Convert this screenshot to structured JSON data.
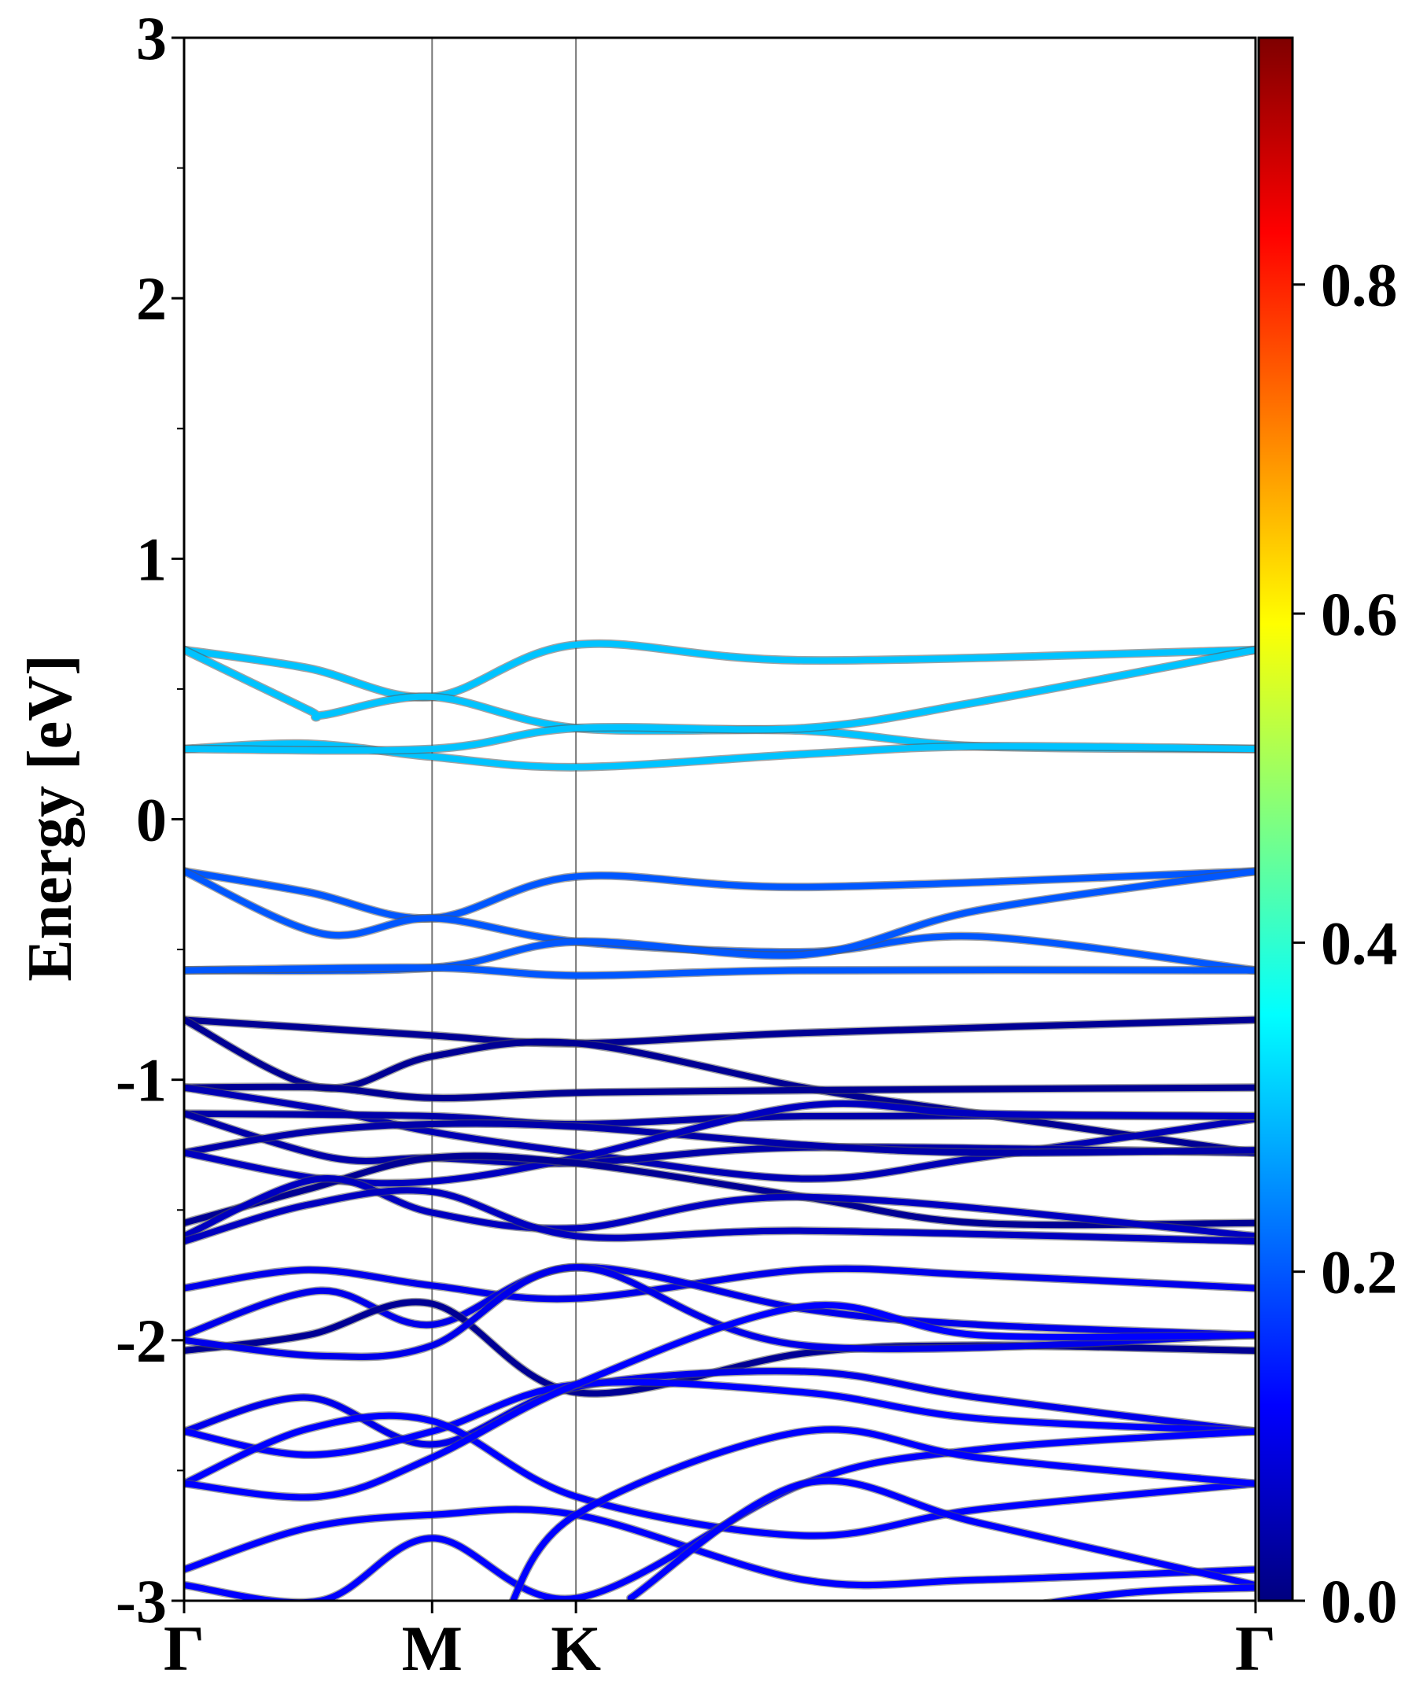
{
  "chart_data": {
    "type": "line",
    "title": "",
    "xlabel": "",
    "ylabel": "Energy [eV]",
    "ylim": [
      -3,
      3
    ],
    "y_ticks": [
      "-3",
      "-2",
      "-1",
      "0",
      "1",
      "2",
      "3"
    ],
    "k_path": [
      "Γ",
      "M",
      "K",
      "Γ"
    ],
    "k_positions": [
      0,
      1,
      1.58,
      4.32
    ],
    "colorbar": {
      "range": [
        0.0,
        0.95
      ],
      "ticks": [
        "0.0",
        "0.2",
        "0.4",
        "0.6",
        "0.8"
      ],
      "colormap": "jet"
    },
    "grid": false,
    "series": [
      {
        "weight": 0.3,
        "values": [
          [
            0,
            0.65
          ],
          [
            0.5,
            0.58
          ],
          [
            1,
            0.47
          ],
          [
            1.58,
            0.67
          ],
          [
            2.5,
            0.61
          ],
          [
            4.32,
            0.65
          ]
        ]
      },
      {
        "weight": 0.3,
        "values": [
          [
            0,
            0.65
          ],
          [
            0.5,
            0.42
          ],
          [
            0.56,
            0.4
          ],
          [
            1,
            0.47
          ],
          [
            1.58,
            0.35
          ],
          [
            2.5,
            0.34
          ],
          [
            3.2,
            0.28
          ],
          [
            4.32,
            0.27
          ]
        ]
      },
      {
        "weight": 0.3,
        "values": [
          [
            0,
            0.27
          ],
          [
            0.5,
            0.29
          ],
          [
            1,
            0.24
          ],
          [
            1.58,
            0.2
          ],
          [
            2.5,
            0.25
          ],
          [
            3.2,
            0.28
          ],
          [
            4.32,
            0.27
          ]
        ]
      },
      {
        "weight": 0.3,
        "values": [
          [
            0,
            0.27
          ],
          [
            1,
            0.27
          ],
          [
            1.58,
            0.35
          ],
          [
            2.5,
            0.35
          ],
          [
            3.2,
            0.45
          ],
          [
            4.32,
            0.65
          ]
        ]
      },
      {
        "weight": 0.2,
        "values": [
          [
            0,
            -0.2
          ],
          [
            0.5,
            -0.28
          ],
          [
            1,
            -0.38
          ],
          [
            1.58,
            -0.22
          ],
          [
            2.5,
            -0.26
          ],
          [
            4.32,
            -0.2
          ]
        ]
      },
      {
        "weight": 0.2,
        "values": [
          [
            0,
            -0.2
          ],
          [
            0.56,
            -0.44
          ],
          [
            1,
            -0.38
          ],
          [
            1.58,
            -0.47
          ],
          [
            2.5,
            -0.51
          ],
          [
            3.2,
            -0.45
          ],
          [
            4.32,
            -0.58
          ]
        ]
      },
      {
        "weight": 0.2,
        "values": [
          [
            0,
            -0.58
          ],
          [
            1,
            -0.57
          ],
          [
            1.58,
            -0.47
          ],
          [
            2.5,
            -0.52
          ],
          [
            3.2,
            -0.35
          ],
          [
            4.32,
            -0.2
          ]
        ]
      },
      {
        "weight": 0.2,
        "values": [
          [
            0,
            -0.58
          ],
          [
            1,
            -0.57
          ],
          [
            1.58,
            -0.6
          ],
          [
            2.5,
            -0.58
          ],
          [
            4.32,
            -0.58
          ]
        ]
      },
      {
        "weight": 0.02,
        "values": [
          [
            0,
            -0.77
          ],
          [
            0.5,
            -0.8
          ],
          [
            1,
            -0.83
          ],
          [
            1.58,
            -0.86
          ],
          [
            2.5,
            -0.82
          ],
          [
            4.32,
            -0.77
          ]
        ]
      },
      {
        "weight": 0.02,
        "values": [
          [
            0,
            -0.77
          ],
          [
            0.55,
            -1.03
          ],
          [
            1,
            -0.91
          ],
          [
            1.58,
            -0.86
          ],
          [
            2.5,
            -1.03
          ],
          [
            3.2,
            -1.13
          ],
          [
            4.32,
            -1.28
          ]
        ]
      },
      {
        "weight": 0.02,
        "values": [
          [
            0,
            -1.03
          ],
          [
            0.56,
            -1.03
          ],
          [
            1,
            -1.07
          ],
          [
            1.58,
            -1.05
          ],
          [
            2.5,
            -1.04
          ],
          [
            4.32,
            -1.03
          ]
        ]
      },
      {
        "weight": 0.05,
        "values": [
          [
            0,
            -1.03
          ],
          [
            0.6,
            -1.12
          ],
          [
            1,
            -1.2
          ],
          [
            1.58,
            -1.28
          ],
          [
            2.5,
            -1.38
          ],
          [
            3.2,
            -1.3
          ],
          [
            4.32,
            -1.15
          ]
        ]
      },
      {
        "weight": 0.04,
        "values": [
          [
            0,
            -1.13
          ],
          [
            1,
            -1.14
          ],
          [
            1.58,
            -1.17
          ],
          [
            2.5,
            -1.14
          ],
          [
            4.32,
            -1.14
          ]
        ]
      },
      {
        "weight": 0.04,
        "values": [
          [
            0,
            -1.13
          ],
          [
            0.6,
            -1.3
          ],
          [
            1,
            -1.3
          ],
          [
            1.58,
            -1.32
          ],
          [
            2.5,
            -1.26
          ],
          [
            4.32,
            -1.28
          ]
        ]
      },
      {
        "weight": 0.04,
        "values": [
          [
            0,
            -1.28
          ],
          [
            0.5,
            -1.2
          ],
          [
            1,
            -1.17
          ],
          [
            1.58,
            -1.18
          ],
          [
            2.5,
            -1.25
          ],
          [
            3.2,
            -1.28
          ],
          [
            4.32,
            -1.27
          ]
        ]
      },
      {
        "weight": 0.06,
        "values": [
          [
            0,
            -1.28
          ],
          [
            0.55,
            -1.38
          ],
          [
            1,
            -1.39
          ],
          [
            1.58,
            -1.3
          ],
          [
            2.5,
            -1.1
          ],
          [
            3.2,
            -1.13
          ],
          [
            4.32,
            -1.14
          ]
        ]
      },
      {
        "weight": 0.02,
        "values": [
          [
            0,
            -1.55
          ],
          [
            0.5,
            -1.42
          ],
          [
            1,
            -1.3
          ],
          [
            1.58,
            -1.32
          ],
          [
            2.5,
            -1.45
          ],
          [
            3.2,
            -1.55
          ],
          [
            4.32,
            -1.55
          ]
        ]
      },
      {
        "weight": 0.06,
        "values": [
          [
            0,
            -1.6
          ],
          [
            0.55,
            -1.38
          ],
          [
            1,
            -1.51
          ],
          [
            1.58,
            -1.57
          ],
          [
            2.5,
            -1.45
          ],
          [
            4.32,
            -1.6
          ]
        ]
      },
      {
        "weight": 0.06,
        "values": [
          [
            0,
            -1.62
          ],
          [
            0.5,
            -1.48
          ],
          [
            1,
            -1.43
          ],
          [
            1.58,
            -1.6
          ],
          [
            2.5,
            -1.58
          ],
          [
            4.32,
            -1.62
          ]
        ]
      },
      {
        "weight": 0.1,
        "values": [
          [
            0,
            -1.8
          ],
          [
            0.5,
            -1.73
          ],
          [
            1,
            -1.79
          ],
          [
            1.58,
            -1.84
          ],
          [
            2.5,
            -1.73
          ],
          [
            3.2,
            -1.75
          ],
          [
            4.32,
            -1.8
          ]
        ]
      },
      {
        "weight": 0.1,
        "values": [
          [
            0,
            -1.98
          ],
          [
            0.55,
            -1.81
          ],
          [
            1,
            -1.94
          ],
          [
            1.58,
            -1.72
          ],
          [
            2.5,
            -1.88
          ],
          [
            3.2,
            -1.94
          ],
          [
            4.32,
            -1.98
          ]
        ]
      },
      {
        "weight": 0.02,
        "values": [
          [
            0,
            -2.04
          ],
          [
            0.5,
            -1.98
          ],
          [
            1,
            -1.86
          ],
          [
            1.58,
            -2.2
          ],
          [
            2.5,
            -2.05
          ],
          [
            3.2,
            -2.02
          ],
          [
            4.32,
            -2.04
          ]
        ]
      },
      {
        "weight": 0.1,
        "values": [
          [
            0,
            -2.0
          ],
          [
            0.55,
            -2.06
          ],
          [
            1,
            -2.02
          ],
          [
            1.58,
            -1.72
          ],
          [
            2.5,
            -2.02
          ],
          [
            4.32,
            -1.98
          ]
        ]
      },
      {
        "weight": 0.1,
        "values": [
          [
            0,
            -2.35
          ],
          [
            0.5,
            -2.22
          ],
          [
            1,
            -2.4
          ],
          [
            1.58,
            -2.18
          ],
          [
            2.5,
            -2.12
          ],
          [
            3.2,
            -2.22
          ],
          [
            4.32,
            -2.35
          ]
        ]
      },
      {
        "weight": 0.12,
        "values": [
          [
            0,
            -2.35
          ],
          [
            0.5,
            -2.44
          ],
          [
            1,
            -2.35
          ],
          [
            1.58,
            -2.17
          ],
          [
            2.5,
            -2.2
          ],
          [
            3.2,
            -2.3
          ],
          [
            4.32,
            -2.35
          ]
        ]
      },
      {
        "weight": 0.12,
        "values": [
          [
            0,
            -2.55
          ],
          [
            0.5,
            -2.34
          ],
          [
            1,
            -2.31
          ],
          [
            1.58,
            -2.6
          ],
          [
            2.5,
            -2.75
          ],
          [
            3.2,
            -2.65
          ],
          [
            4.32,
            -2.55
          ]
        ]
      },
      {
        "weight": 0.12,
        "values": [
          [
            0,
            -2.55
          ],
          [
            0.55,
            -2.6
          ],
          [
            1,
            -2.45
          ],
          [
            1.58,
            -2.17
          ],
          [
            2.5,
            -1.87
          ],
          [
            3.2,
            -1.98
          ],
          [
            4.32,
            -1.98
          ]
        ]
      },
      {
        "weight": 0.12,
        "values": [
          [
            0,
            -2.88
          ],
          [
            0.5,
            -2.72
          ],
          [
            1,
            -2.67
          ],
          [
            1.58,
            -2.67
          ],
          [
            2.5,
            -2.92
          ],
          [
            3.2,
            -2.92
          ],
          [
            4.32,
            -2.88
          ]
        ]
      },
      {
        "weight": 0.12,
        "values": [
          [
            0,
            -2.94
          ],
          [
            0.55,
            -3.0
          ],
          [
            1,
            -2.76
          ],
          [
            1.58,
            -2.99
          ],
          [
            2.5,
            -2.55
          ],
          [
            3.2,
            -2.42
          ],
          [
            4.32,
            -2.35
          ]
        ]
      },
      {
        "weight": 0.12,
        "values": [
          [
            1.3,
            -3.05
          ],
          [
            1.58,
            -2.67
          ],
          [
            2.5,
            -2.35
          ],
          [
            3.2,
            -2.45
          ],
          [
            4.32,
            -2.55
          ]
        ]
      },
      {
        "weight": 0.12,
        "values": [
          [
            1.8,
            -2.99
          ],
          [
            2.5,
            -2.55
          ],
          [
            3.2,
            -2.7
          ],
          [
            4.32,
            -2.94
          ]
        ]
      },
      {
        "weight": 0.12,
        "values": [
          [
            3.2,
            -3.05
          ],
          [
            3.8,
            -2.97
          ],
          [
            4.32,
            -2.95
          ]
        ]
      }
    ]
  }
}
